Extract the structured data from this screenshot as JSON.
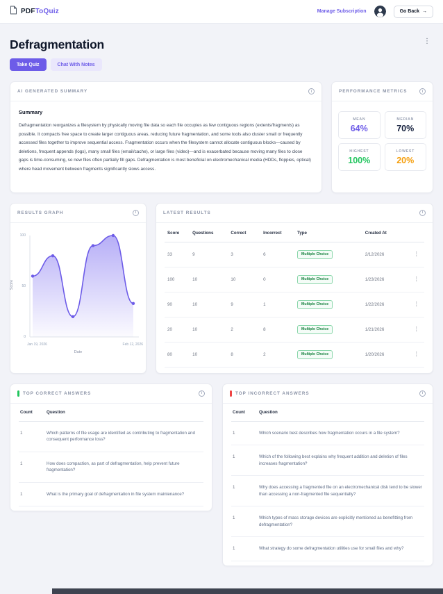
{
  "icons": {
    "kebab": "⋮",
    "info": "i",
    "arrow_right": "→"
  },
  "header": {
    "brand_prefix": "PDF",
    "brand_suffix": "ToQuiz",
    "manage_subscription": "Manage Subscription",
    "go_back": "Go Back"
  },
  "page": {
    "title": "Defragmentation",
    "take_quiz": "Take Quiz",
    "chat_with_notes": "Chat With Notes"
  },
  "summary_card": {
    "title": "AI GENERATED SUMMARY",
    "heading": "Summary",
    "body": "Defragmentation reorganizes a filesystem by physically moving file data so each file occupies as few contiguous regions (extents/fragments) as possible. It compacts free space to create larger contiguous areas, reducing future fragmentation, and some tools also cluster small or frequently accessed files together to improve sequential access. Fragmentation occurs when the filesystem cannot allocate contiguous blocks—caused by deletions, frequent appends (logs), many small files (email/cache), or large files (video)—and is exacerbated because moving many files to close gaps is time-consuming, so new files often partially fill gaps. Defragmentation is most beneficial on electromechanical media (HDDs, floppies, optical) where head movement between fragments significantly slows access."
  },
  "metrics_card": {
    "title": "PERFORMANCE METRICS",
    "metrics": [
      {
        "label": "MEAN",
        "value": "64%",
        "color": "#6d5ce8"
      },
      {
        "label": "MEDIAN",
        "value": "70%",
        "color": "#16213e"
      },
      {
        "label": "HIGHEST",
        "value": "100%",
        "color": "#22c55e"
      },
      {
        "label": "LOWEST",
        "value": "20%",
        "color": "#f59e0b"
      }
    ]
  },
  "graph_card": {
    "title": "RESULTS GRAPH",
    "ylabel": "Score",
    "xlabel": "Date",
    "yticks": [
      "100",
      "50",
      "0"
    ],
    "xticks": [
      "Jan 19, 2026",
      "Feb 12, 2026"
    ]
  },
  "chart_data": {
    "type": "line",
    "title": "Results Graph",
    "x": [
      "Jan 19, 2026",
      "Jan 20, 2026",
      "Jan 21, 2026",
      "Jan 22, 2026",
      "Jan 23, 2026",
      "Feb 12, 2026"
    ],
    "values": [
      60,
      80,
      20,
      90,
      100,
      33
    ],
    "xlabel": "Date",
    "ylabel": "Score",
    "ylim": [
      0,
      100
    ],
    "line_color": "#6d5ce8",
    "grid": false,
    "legend": false
  },
  "results_card": {
    "title": "LATEST RESULTS",
    "columns": [
      "Score",
      "Questions",
      "Correct",
      "Incorrect",
      "Type",
      "Created At"
    ],
    "rows": [
      {
        "score": "33",
        "questions": "9",
        "correct": "3",
        "incorrect": "6",
        "type": "Multiple Choice",
        "created": "2/12/2026"
      },
      {
        "score": "100",
        "questions": "10",
        "correct": "10",
        "incorrect": "0",
        "type": "Multiple Choice",
        "created": "1/23/2026"
      },
      {
        "score": "90",
        "questions": "10",
        "correct": "9",
        "incorrect": "1",
        "type": "Multiple Choice",
        "created": "1/22/2026"
      },
      {
        "score": "20",
        "questions": "10",
        "correct": "2",
        "incorrect": "8",
        "type": "Multiple Choice",
        "created": "1/21/2026"
      },
      {
        "score": "80",
        "questions": "10",
        "correct": "8",
        "incorrect": "2",
        "type": "Multiple Choice",
        "created": "1/20/2026"
      }
    ]
  },
  "top_correct": {
    "title": "TOP CORRECT ANSWERS",
    "columns": [
      "Count",
      "Question"
    ],
    "rows": [
      {
        "count": "1",
        "question": "Which patterns of file usage are identified as contributing to fragmentation and consequent performance loss?"
      },
      {
        "count": "1",
        "question": "How does compaction, as part of defragmentation, help prevent future fragmentation?"
      },
      {
        "count": "1",
        "question": "What is the primary goal of defragmentation in file system maintenance?"
      }
    ]
  },
  "top_incorrect": {
    "title": "TOP INCORRECT ANSWERS",
    "columns": [
      "Count",
      "Question"
    ],
    "rows": [
      {
        "count": "1",
        "question": "Which scenario best describes how fragmentation occurs in a file system?"
      },
      {
        "count": "1",
        "question": "Which of the following best explains why frequent addition and deletion of files increases fragmentation?"
      },
      {
        "count": "1",
        "question": "Why does accessing a fragmented file on an electromechanical disk tend to be slower than accessing a non-fragmented file sequentially?"
      },
      {
        "count": "1",
        "question": "Which types of mass storage devices are explicitly mentioned as benefitting from defragmentation?"
      },
      {
        "count": "1",
        "question": "What strategy do some defragmentation utilities use for small files and why?"
      }
    ]
  }
}
